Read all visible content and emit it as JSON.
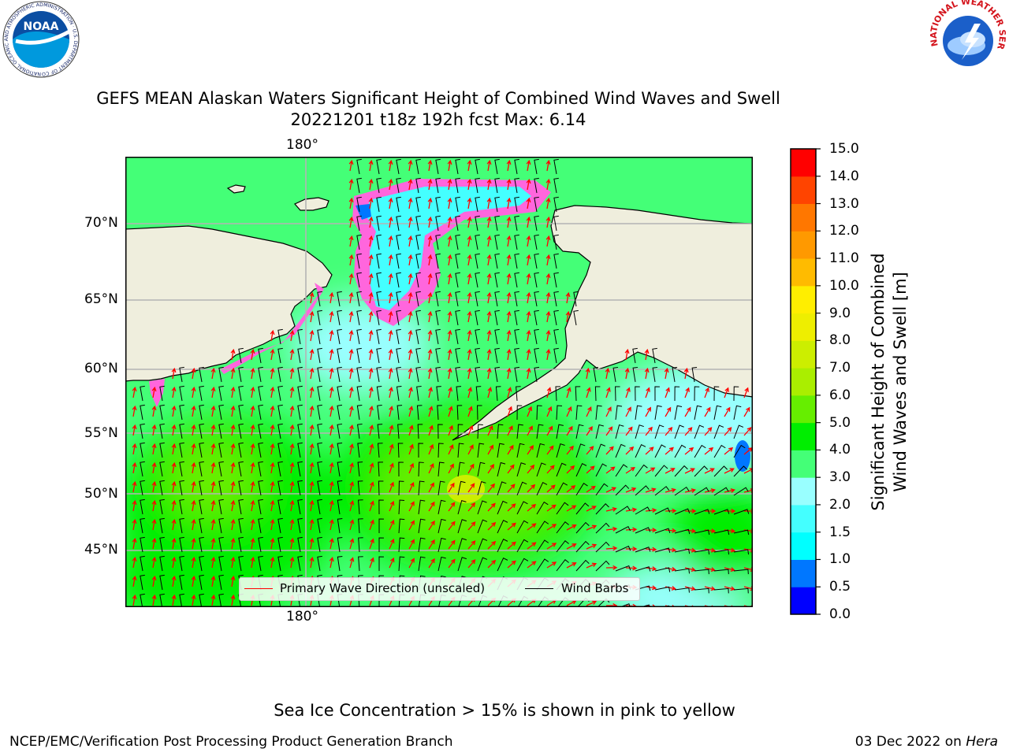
{
  "header": {
    "title_line1": "GEFS MEAN Alaskan Waters Significant Height of Combined Wind Waves and Swell",
    "title_line2": "20221201 t18z 192h fcst   Max: 6.14",
    "noaa_logo_text": "NOAA",
    "noaa_ring_text": "NATIONAL OCEANIC AND ATMOSPHERIC ADMINISTRATION · U.S. DEPARTMENT OF COMMERCE",
    "nws_ring_text": "NATIONAL WEATHER SERVICE"
  },
  "map": {
    "top_lon_label": "180°",
    "bottom_lon_label": "180°",
    "lat_labels": [
      "70°N",
      "65°N",
      "60°N",
      "55°N",
      "50°N",
      "45°N"
    ],
    "legend": {
      "wave_label": "Primary Wave Direction (unscaled)",
      "wave_color": "#ff0000",
      "barb_label": "Wind Barbs",
      "barb_color": "#000000"
    }
  },
  "colorbar": {
    "title": "Significant Height of Combined Wind Waves and Swell [m]",
    "title_line1": "Significant Height of Combined",
    "title_line2": "Wind Waves and Swell [m]",
    "ticks": [
      "15.0",
      "14.0",
      "13.0",
      "12.0",
      "11.0",
      "10.0",
      "9.0",
      "8.0",
      "7.0",
      "6.0",
      "5.0",
      "4.0",
      "3.0",
      "2.0",
      "1.5",
      "1.0",
      "0.5",
      "0.0"
    ],
    "colors_bottom_to_top": [
      "#0000ff",
      "#0077ff",
      "#00ffff",
      "#44ffff",
      "#99ffff",
      "#44ff77",
      "#00ee00",
      "#66ee00",
      "#aaee00",
      "#ccee00",
      "#eeee00",
      "#ffee00",
      "#ffbb00",
      "#ff9900",
      "#ff7700",
      "#ff4400",
      "#ff0000"
    ]
  },
  "chart_data": {
    "type": "heatmap",
    "title": "GEFS MEAN Alaskan Waters Significant Height of Combined Wind Waves and Swell",
    "subtitle": "20221201 t18z 192h fcst   Max: 6.14",
    "max_value": 6.14,
    "units": "m",
    "colorbar_ticks": [
      0.0,
      0.5,
      1.0,
      1.5,
      2.0,
      3.0,
      4.0,
      5.0,
      6.0,
      7.0,
      8.0,
      9.0,
      10.0,
      11.0,
      12.0,
      13.0,
      14.0,
      15.0
    ],
    "lat_ticks": [
      "45°N",
      "50°N",
      "55°N",
      "60°N",
      "65°N",
      "70°N"
    ],
    "lon_ticks": [
      "180°"
    ],
    "grid": true,
    "legend_position": "bottom-center"
  },
  "footer": {
    "sea_ice_note": "Sea Ice Concentration > 15% is shown in pink to yellow",
    "producer": "NCEP/EMC/Verification Post Processing Product Generation Branch",
    "date": "03 Dec 2022 on ",
    "machine": "Hera"
  }
}
